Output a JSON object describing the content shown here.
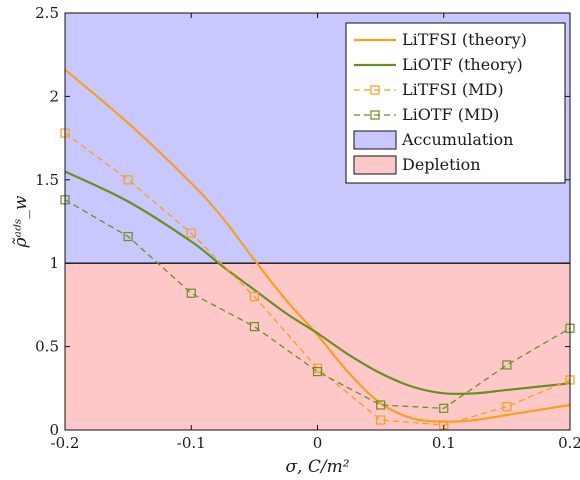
{
  "chart_data": {
    "type": "line",
    "xlabel": "σ, C/m²",
    "ylabel": "ρ̃ᵃᵈˢ_w",
    "xlim": [
      -0.2,
      0.2
    ],
    "ylim": [
      0,
      2.5
    ],
    "xticks": [
      "-0.2",
      "-0.1",
      "0",
      "0.1",
      "0.2"
    ],
    "yticks": [
      "0",
      "0.5",
      "1",
      "1.5",
      "2",
      "2.5"
    ],
    "grid": false,
    "legend_position": "top-right",
    "regions": [
      {
        "name": "Accumulation",
        "y_from": 1.0,
        "y_to": 2.5,
        "color": "#c8c8ff"
      },
      {
        "name": "Depletion",
        "y_from": 0.0,
        "y_to": 1.0,
        "color": "#ffc8c8"
      }
    ],
    "threshold_line": 1.0,
    "series": [
      {
        "name": "LiTFSI (theory)",
        "style": "solid",
        "color": "#f5a020",
        "x": [
          -0.2,
          -0.15,
          -0.1,
          -0.075,
          -0.05,
          -0.025,
          0.0,
          0.025,
          0.05,
          0.075,
          0.1,
          0.125,
          0.15,
          0.2
        ],
        "y": [
          2.16,
          1.84,
          1.48,
          1.27,
          1.02,
          0.78,
          0.57,
          0.34,
          0.16,
          0.07,
          0.05,
          0.06,
          0.09,
          0.15
        ]
      },
      {
        "name": "LiOTF (theory)",
        "style": "solid",
        "color": "#6b8e23",
        "x": [
          -0.2,
          -0.15,
          -0.1,
          -0.075,
          -0.05,
          -0.025,
          0.0,
          0.025,
          0.05,
          0.075,
          0.1,
          0.125,
          0.15,
          0.2
        ],
        "y": [
          1.55,
          1.37,
          1.13,
          0.98,
          0.84,
          0.7,
          0.58,
          0.45,
          0.34,
          0.26,
          0.22,
          0.22,
          0.24,
          0.28
        ]
      },
      {
        "name": "LiTFSI (MD)",
        "style": "dashed",
        "marker": "square",
        "color": "#f5a020",
        "x": [
          -0.2,
          -0.15,
          -0.1,
          -0.05,
          0.0,
          0.05,
          0.1,
          0.15,
          0.2
        ],
        "y": [
          1.78,
          1.5,
          1.18,
          0.8,
          0.37,
          0.06,
          0.03,
          0.14,
          0.3
        ]
      },
      {
        "name": "LiOTF (MD)",
        "style": "dashed",
        "marker": "square",
        "color": "#6b8e23",
        "x": [
          -0.2,
          -0.15,
          -0.1,
          -0.05,
          0.0,
          0.05,
          0.1,
          0.15,
          0.2
        ],
        "y": [
          1.38,
          1.16,
          0.82,
          0.62,
          0.35,
          0.15,
          0.13,
          0.39,
          0.61
        ]
      }
    ]
  }
}
